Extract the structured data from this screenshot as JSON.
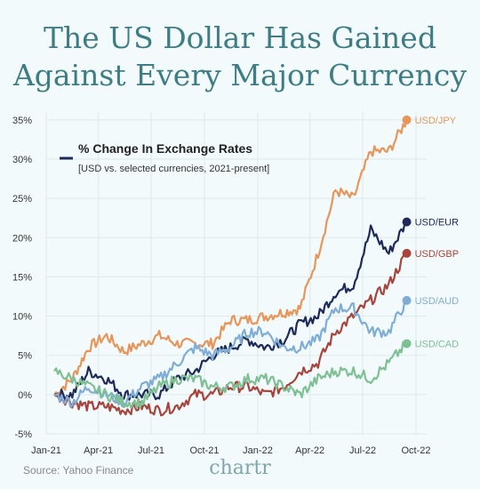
{
  "header": {
    "title_line1": "The US Dollar Has Gained",
    "title_line2": "Against Every Major Currency"
  },
  "footer": {
    "source": "Source: Yahoo Finance",
    "brand": "chartr"
  },
  "chart_data": {
    "type": "line",
    "title": "% Change In Exchange Rates",
    "subtitle": "[USD vs. selected currencies, 2021-present]",
    "x_ticks": [
      "Jan-21",
      "Apr-21",
      "Jul-21",
      "Oct-21",
      "Jan-22",
      "Apr-22",
      "Jul-22",
      "Oct-22"
    ],
    "y_ticks": [
      "-5%",
      "0%",
      "5%",
      "10%",
      "15%",
      "20%",
      "25%",
      "30%",
      "35%"
    ],
    "y_tick_values": [
      -5,
      0,
      5,
      10,
      15,
      20,
      25,
      30,
      35
    ],
    "xlim": [
      "2021-01-01",
      "2022-10-01"
    ],
    "ylim": [
      -5,
      36
    ],
    "grid": true,
    "legend_placement": "right-end labels",
    "x": [
      "2021-01",
      "2021-02",
      "2021-03",
      "2021-04",
      "2021-05",
      "2021-06",
      "2021-07",
      "2021-08",
      "2021-09",
      "2021-10",
      "2021-11",
      "2021-12",
      "2022-01",
      "2022-02",
      "2022-03",
      "2022-04",
      "2022-05",
      "2022-06",
      "2022-07",
      "2022-08",
      "2022-09"
    ],
    "series": [
      {
        "name": "USD/JPY",
        "color": "#e8955a",
        "values": [
          0,
          2,
          6,
          7.5,
          5.5,
          6.5,
          7.5,
          6.5,
          6.5,
          6.5,
          9.5,
          9.5,
          10,
          10.5,
          11,
          18,
          26,
          25,
          31,
          31,
          35
        ]
      },
      {
        "name": "USD/EUR",
        "color": "#1e2a5a",
        "values": [
          0,
          0,
          3,
          2,
          0,
          0,
          0,
          2,
          3,
          5,
          6,
          7,
          6,
          7,
          9,
          10,
          13,
          14,
          21,
          18,
          22
        ]
      },
      {
        "name": "USD/GBP",
        "color": "#a8443c",
        "values": [
          0,
          -1,
          -1.5,
          -1.5,
          -2,
          -1.5,
          -2,
          -1.5,
          0,
          0,
          1,
          1,
          0,
          1,
          3,
          4,
          8,
          10,
          12,
          14,
          18
        ]
      },
      {
        "name": "USD/AUD",
        "color": "#7fadd6",
        "values": [
          0,
          -1,
          1,
          0,
          -1,
          1,
          2,
          4,
          6,
          5,
          6,
          8,
          8,
          6,
          6,
          7,
          11,
          11,
          8,
          8,
          12
        ]
      },
      {
        "name": "USD/CAD",
        "color": "#7fbf94",
        "values": [
          3,
          2,
          1,
          0,
          -1,
          -1,
          1,
          2,
          2,
          1,
          1,
          2,
          2,
          1,
          0,
          2,
          3,
          3,
          2,
          4,
          6.5
        ]
      }
    ]
  }
}
